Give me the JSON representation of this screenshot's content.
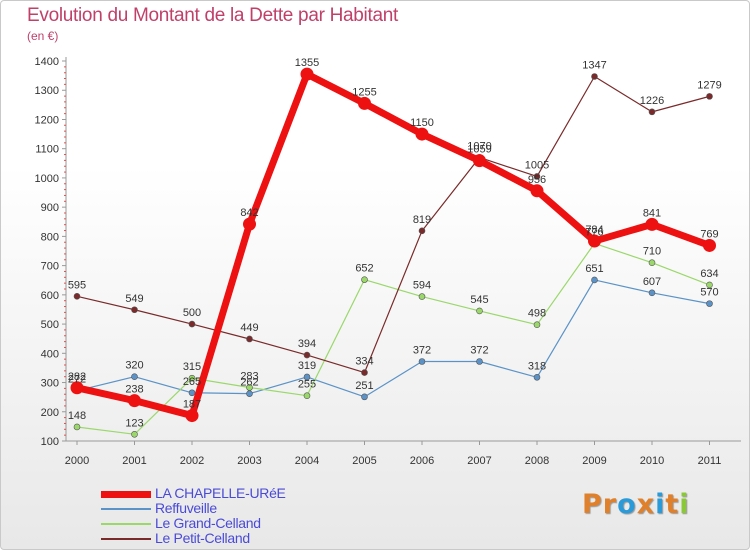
{
  "title": "Evolution du Montant de la Dette par Habitant",
  "subtitle": "(en €)",
  "logo": {
    "text": "Proxiti",
    "colors": [
      "#e0802a",
      "#e0802a",
      "#2a9ad8",
      "#e0802a",
      "#2a9ad8",
      "#e0802a",
      "#8ac83a"
    ]
  },
  "colors": {
    "LA CHAPELLE-URéE": "#ee1111",
    "Reffuveille": "#5b93c8",
    "Le Grand-Celland": "#9ad86a",
    "Le Petit-Celland": "#7a2a2a"
  },
  "chart_data": {
    "type": "line",
    "title": "Evolution du Montant de la Dette par Habitant",
    "ylabel": "(en €)",
    "xlabel": "",
    "x": [
      "2000",
      "2001",
      "2002",
      "2003",
      "2004",
      "2005",
      "2006",
      "2007",
      "2008",
      "2009",
      "2010",
      "2011"
    ],
    "ylim": [
      100,
      1400
    ],
    "yticks": [
      "100",
      "200",
      "300",
      "400",
      "500",
      "600",
      "700",
      "800",
      "900",
      "1000",
      "1100",
      "1200",
      "1300",
      "1400"
    ],
    "grid": false,
    "legend": "bottom-left",
    "series": [
      {
        "name": "LA CHAPELLE-URéE",
        "values": [
          282,
          238,
          187,
          842,
          1355,
          1255,
          1150,
          1059,
          956,
          784,
          841,
          769
        ],
        "labels": [
          "282",
          "238",
          "187",
          "842",
          "1355",
          "1255",
          "1150",
          "1059",
          "956",
          "784",
          "841",
          "769"
        ]
      },
      {
        "name": "Reffuveille",
        "values": [
          272,
          320,
          265,
          262,
          319,
          251,
          372,
          372,
          318,
          651,
          607,
          570
        ],
        "labels": [
          "272",
          "320",
          "265",
          "262",
          "319",
          "251",
          "372",
          "372",
          "318",
          "651",
          "607",
          "570"
        ]
      },
      {
        "name": "Le Grand-Celland",
        "values": [
          148,
          123,
          315,
          283,
          255,
          652,
          594,
          545,
          498,
          776,
          710,
          634
        ],
        "labels": [
          "148",
          "123",
          "315",
          "283",
          "255",
          "652",
          "594",
          "545",
          "498",
          "776",
          "710",
          "634"
        ]
      },
      {
        "name": "Le Petit-Celland",
        "values": [
          595,
          549,
          500,
          449,
          394,
          334,
          819,
          1070,
          1005,
          1347,
          1226,
          1279
        ],
        "labels": [
          "595",
          "549",
          "500",
          "449",
          "394",
          "334",
          "819",
          "1070",
          "1005",
          "1347",
          "1226",
          "1279"
        ]
      }
    ]
  }
}
